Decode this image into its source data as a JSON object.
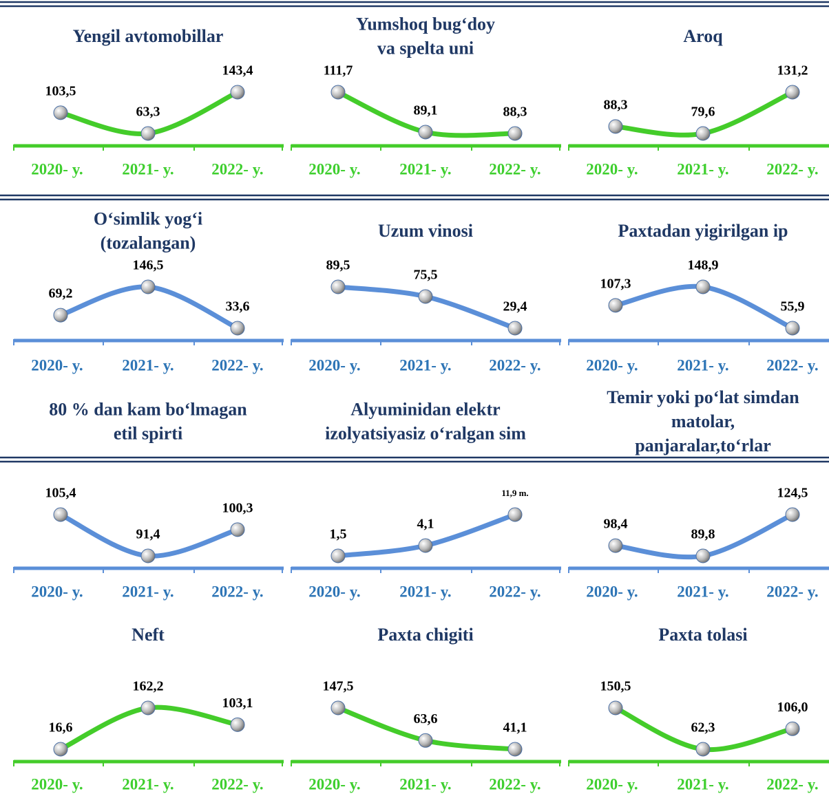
{
  "chart_data": [
    {
      "type": "line",
      "title": [
        "Yengil avtomobillar"
      ],
      "categories": [
        "2020- y.",
        "2021- y.",
        "2022- y."
      ],
      "values": [
        103.5,
        63.3,
        143.4
      ],
      "value_labels": [
        "103,5",
        "63,3",
        "143,4"
      ],
      "color": "#44cc2a",
      "category_color": "#3fcf2f"
    },
    {
      "type": "line",
      "title": [
        "Yumshoq bug‘doy",
        "va spelta uni"
      ],
      "categories": [
        "2020- y.",
        "2021- y.",
        "2022- y."
      ],
      "values": [
        111.7,
        89.1,
        88.3
      ],
      "value_labels": [
        "111,7",
        "89,1",
        "88,3"
      ],
      "color": "#44cc2a",
      "category_color": "#3fcf2f"
    },
    {
      "type": "line",
      "title": [
        "Aroq"
      ],
      "categories": [
        "2020- y.",
        "2021- y.",
        "2022- y."
      ],
      "values": [
        88.3,
        79.6,
        131.2
      ],
      "value_labels": [
        "88,3",
        "79,6",
        "131,2"
      ],
      "color": "#44cc2a",
      "category_color": "#3fcf2f"
    },
    {
      "type": "line",
      "title": [
        "O‘simlik yog‘i",
        "(tozalangan)"
      ],
      "categories": [
        "2020- y.",
        "2021- y.",
        "2022- y."
      ],
      "values": [
        69.2,
        146.5,
        33.6
      ],
      "value_labels": [
        "69,2",
        "146,5",
        "33,6"
      ],
      "color": "#5b8fd8",
      "category_color": "#2e75b6"
    },
    {
      "type": "line",
      "title": [
        "Uzum vinosi"
      ],
      "categories": [
        "2020- y.",
        "2021- y.",
        "2022- y."
      ],
      "values": [
        89.5,
        75.5,
        29.4
      ],
      "value_labels": [
        "89,5",
        "75,5",
        "29,4"
      ],
      "color": "#5b8fd8",
      "category_color": "#2e75b6"
    },
    {
      "type": "line",
      "title": [
        "Paxtadan yigirilgan ip"
      ],
      "categories": [
        "2020- y.",
        "2021- y.",
        "2022- y."
      ],
      "values": [
        107.3,
        148.9,
        55.9
      ],
      "value_labels": [
        "107,3",
        "148,9",
        "55,9"
      ],
      "color": "#5b8fd8",
      "category_color": "#2e75b6"
    },
    {
      "type": "line",
      "title": [
        "80 % dan kam bo‘lmagan",
        "etil spirti"
      ],
      "categories": [
        "2020- y.",
        "2021- y.",
        "2022- y."
      ],
      "values": [
        105.4,
        91.4,
        100.3
      ],
      "value_labels": [
        "105,4",
        "91,4",
        "100,3"
      ],
      "color": "#5b8fd8",
      "category_color": "#2e75b6"
    },
    {
      "type": "line",
      "title": [
        "Alyuminidan elektr",
        "izolyatsiyasiz o‘ralgan sim"
      ],
      "categories": [
        "2020- y.",
        "2021- y.",
        "2022- y."
      ],
      "values": [
        1.5,
        4.1,
        11.9
      ],
      "value_labels": [
        "1,5",
        "4,1",
        "11,9 m."
      ],
      "color": "#5b8fd8",
      "category_color": "#2e75b6"
    },
    {
      "type": "line",
      "title": [
        "Temir yoki po‘lat simdan",
        "matolar,",
        "panjaralar,to‘rlar"
      ],
      "categories": [
        "2020- y.",
        "2021- y.",
        "2022- y."
      ],
      "values": [
        98.4,
        89.8,
        124.5
      ],
      "value_labels": [
        "98,4",
        "89,8",
        "124,5"
      ],
      "color": "#5b8fd8",
      "category_color": "#2e75b6"
    },
    {
      "type": "line",
      "title": [
        "Neft"
      ],
      "categories": [
        "2020- y.",
        "2021- y.",
        "2022- y."
      ],
      "values": [
        16.6,
        162.2,
        103.1
      ],
      "value_labels": [
        "16,6",
        "162,2",
        "103,1"
      ],
      "color": "#44cc2a",
      "category_color": "#3fcf2f"
    },
    {
      "type": "line",
      "title": [
        "Paxta chigiti"
      ],
      "categories": [
        "2020- y.",
        "2021- y.",
        "2022- y."
      ],
      "values": [
        147.5,
        63.6,
        41.1
      ],
      "value_labels": [
        "147,5",
        "63,6",
        "41,1"
      ],
      "color": "#44cc2a",
      "category_color": "#3fcf2f"
    },
    {
      "type": "line",
      "title": [
        "Paxta tolasi"
      ],
      "categories": [
        "2020- y.",
        "2021- y.",
        "2022- y."
      ],
      "values": [
        150.5,
        62.3,
        106.0
      ],
      "value_labels": [
        "150,5",
        "62,3",
        "106,0"
      ],
      "color": "#44cc2a",
      "category_color": "#3fcf2f"
    }
  ]
}
